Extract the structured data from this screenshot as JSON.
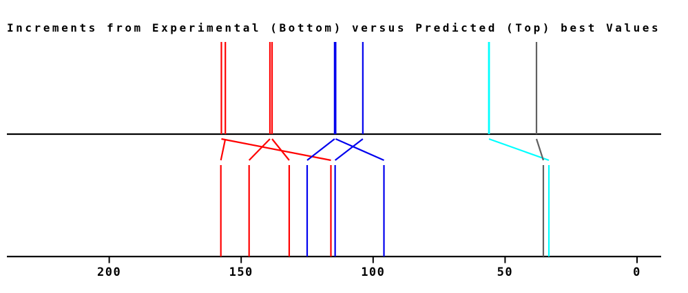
{
  "title": "Increments from Experimental (Bottom) versus Predicted (Top) best Values",
  "chart_data": {
    "type": "line",
    "subtype": "nmr-peak-assignment-comparison",
    "title": "Increments from Experimental (Bottom) versus Predicted (Top) best Values",
    "top_row_meaning": "Predicted best values (peaks above upper axis)",
    "bottom_row_meaning": "Experimental values (peaks above lower axis)",
    "xlabel": "",
    "ylabel": "",
    "x_axis_reversed": true,
    "x_ticks": [
      200,
      150,
      100,
      50,
      0
    ],
    "xlim_displayed": [
      238,
      -9
    ],
    "grid": false,
    "legend": false,
    "colors": {
      "red": "#ff0000",
      "blue": "#0000ee",
      "cyan": "#00ffff",
      "gray": "#606060",
      "axis": "#000000"
    },
    "pairs": [
      {
        "color": "#ff0000",
        "predicted": 157.5,
        "experimental": 116.0
      },
      {
        "color": "#ff0000",
        "predicted": 156.0,
        "experimental": 157.7
      },
      {
        "color": "#ff0000",
        "predicted": 139.1,
        "experimental": 147.0
      },
      {
        "color": "#ff0000",
        "predicted": 138.3,
        "experimental": 131.8
      },
      {
        "color": "#0000ee",
        "predicted": 114.6,
        "experimental": 125.0
      },
      {
        "color": "#0000ee",
        "predicted": 114.2,
        "experimental": 95.9
      },
      {
        "color": "#0000ee",
        "predicted": 103.9,
        "experimental": 114.4
      },
      {
        "color": "#00ffff",
        "predicted": 56.1,
        "experimental": 33.4,
        "top_width": 2.8
      },
      {
        "color": "#606060",
        "predicted": 38.1,
        "experimental": 35.5
      }
    ]
  }
}
